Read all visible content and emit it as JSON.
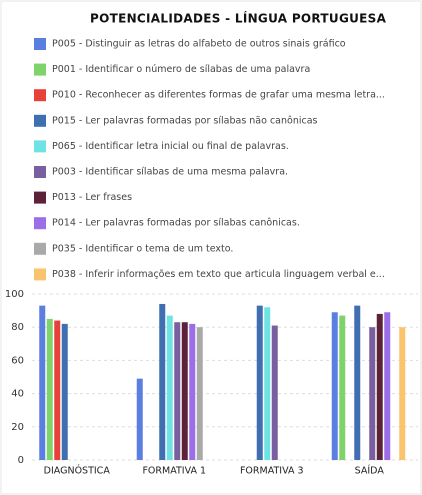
{
  "chart_data": {
    "type": "bar",
    "title": "POTENCIALIDADES - LÍNGUA PORTUGUESA",
    "categories": [
      "DIAGNÓSTICA",
      "FORMATIVA 1",
      "FORMATIVA 3",
      "SAÍDA"
    ],
    "series": [
      {
        "name": "P005 - Distinguir as letras do alfabeto de outros sinais gráfico",
        "color": "#5b7fe0",
        "values": [
          93,
          49,
          null,
          89
        ]
      },
      {
        "name": "P001 - Identificar o número de sílabas de uma palavra",
        "color": "#7fd36a",
        "values": [
          85,
          null,
          null,
          87
        ]
      },
      {
        "name": "P010 - Reconhecer as diferentes formas de grafar uma mesma letra...",
        "color": "#e8413c",
        "values": [
          84,
          null,
          null,
          null
        ]
      },
      {
        "name": "P015 - Ler palavras formadas por sílabas não canônicas",
        "color": "#3f6fb0",
        "values": [
          82,
          94,
          93,
          93
        ]
      },
      {
        "name": "P065 - Identificar letra inicial ou final de palavras.",
        "color": "#6fe3e3",
        "values": [
          null,
          87,
          92,
          null
        ]
      },
      {
        "name": "P003 - Identificar sílabas de uma mesma palavra.",
        "color": "#7a5fa0",
        "values": [
          null,
          83,
          81,
          80
        ]
      },
      {
        "name": "P013 - Ler frases",
        "color": "#5c2338",
        "values": [
          null,
          83,
          null,
          88
        ]
      },
      {
        "name": "P014 - Ler palavras formadas por sílabas canônicas.",
        "color": "#9b6ee8",
        "values": [
          null,
          82,
          null,
          89
        ]
      },
      {
        "name": "P035 - Identificar o tema de um texto.",
        "color": "#a9a9a9",
        "values": [
          null,
          80,
          null,
          null
        ]
      },
      {
        "name": "P038 - Inferir informações em texto que articula linguagem verbal e...",
        "color": "#f9c46d",
        "values": [
          null,
          null,
          null,
          80
        ]
      }
    ],
    "ylim": [
      0,
      100
    ],
    "yticks": [
      0,
      20,
      40,
      60,
      80,
      100
    ],
    "grid": true
  }
}
